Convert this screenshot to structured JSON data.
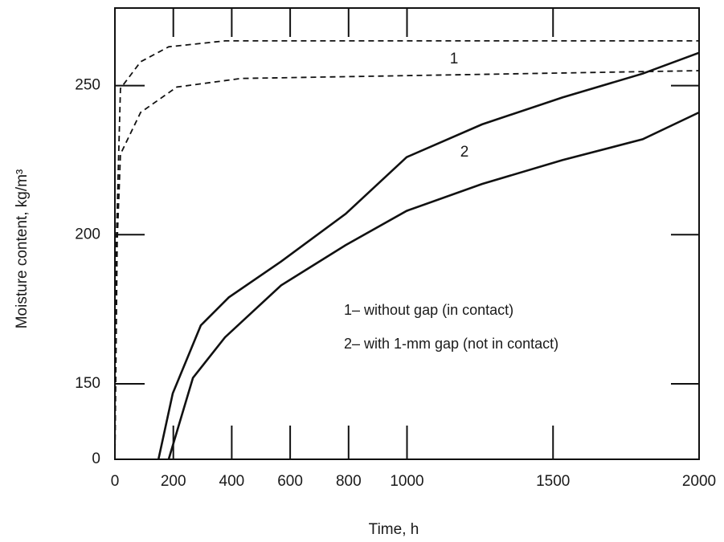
{
  "chart_data": {
    "type": "line",
    "x_label": "Time, h",
    "y_label": "Moisture content, kg/m³",
    "xlim": [
      0,
      2000
    ],
    "xticks": [
      0,
      200,
      400,
      600,
      800,
      1000,
      1500,
      2000
    ],
    "ylim": [
      0,
      276
    ],
    "yticks": [
      0,
      150,
      200,
      250
    ],
    "y_axis_break": true,
    "curve_labels": [
      "1",
      "2"
    ],
    "annotations": [
      "1– without gap (in contact)",
      "2– with 1-mm gap (not in contact)"
    ],
    "series": [
      {
        "color": "#111111",
        "dashed": true,
        "x": [
          0,
          5,
          19,
          88,
          184,
          377,
          2000
        ],
        "values": [
          0,
          198,
          249,
          258,
          263,
          265,
          265
        ]
      },
      {
        "color": "#111111",
        "dashed": true,
        "x": [
          0,
          8,
          19,
          88,
          212,
          432,
          2000
        ],
        "values": [
          0,
          198,
          227,
          241,
          249.5,
          252.4,
          255
        ]
      },
      {
        "color": "#111111",
        "dashed": false,
        "x": [
          149,
          198,
          294,
          390,
          569,
          790,
          999,
          1257,
          1532,
          1807,
          2000
        ],
        "values": [
          0,
          131,
          169.6,
          179,
          191,
          207,
          226,
          237,
          246,
          254,
          261
        ]
      },
      {
        "color": "#111111",
        "dashed": false,
        "x": [
          184,
          267,
          377,
          569,
          790,
          999,
          1257,
          1532,
          1807,
          2000
        ],
        "values": [
          0,
          152,
          165.6,
          183,
          196.5,
          208,
          217,
          225,
          232,
          241
        ]
      }
    ]
  }
}
